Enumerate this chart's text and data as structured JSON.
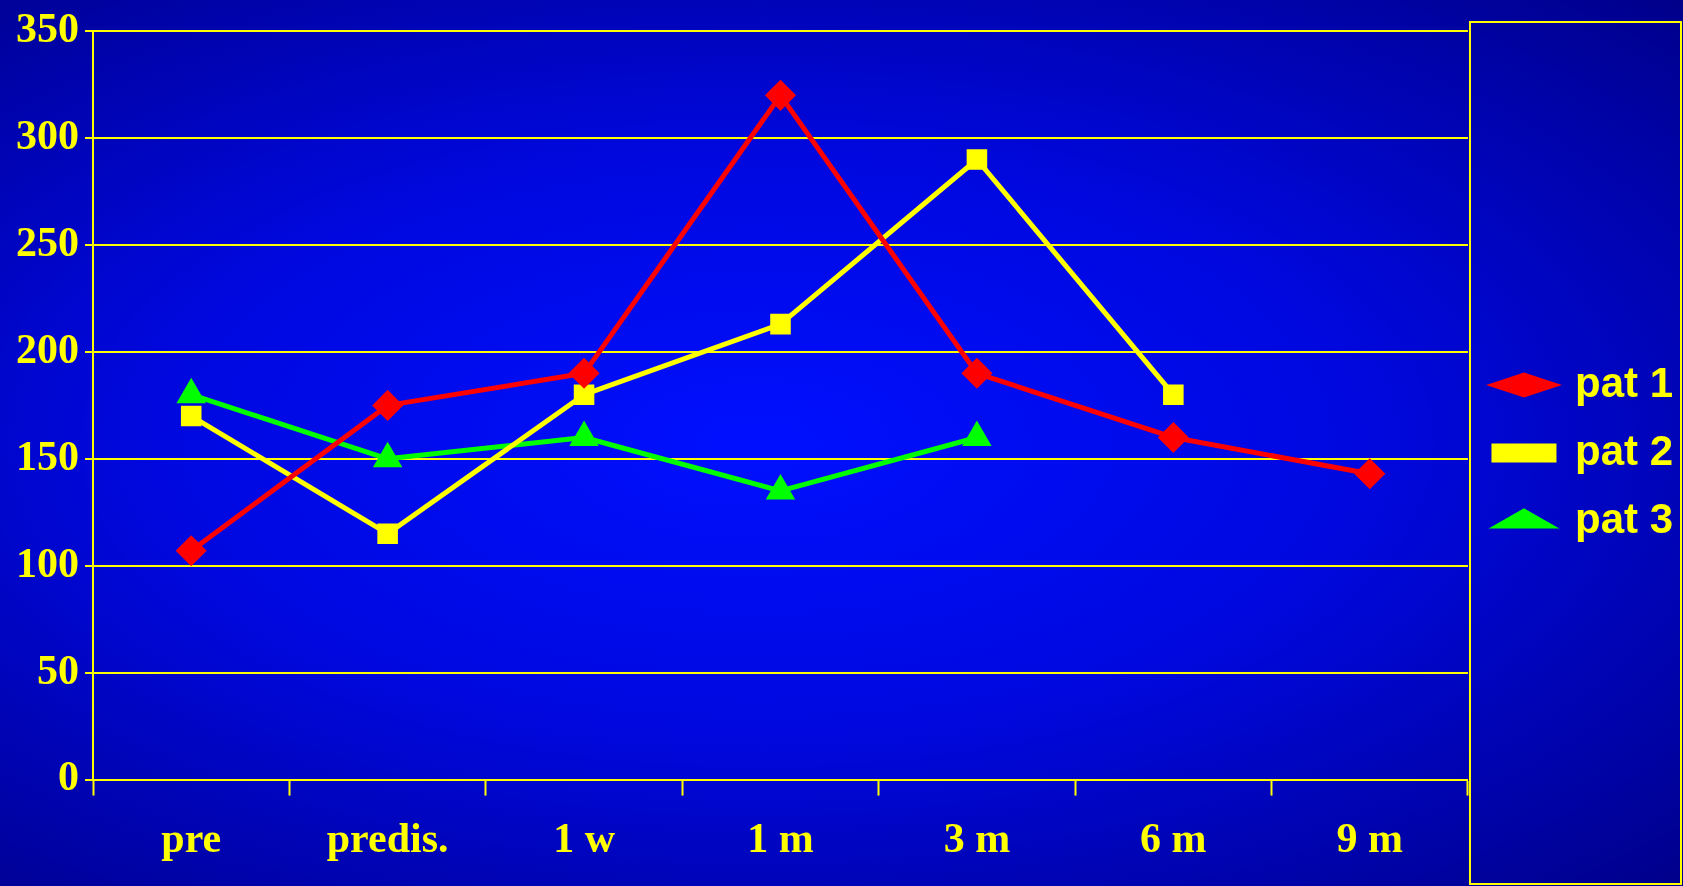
{
  "chart_data": {
    "type": "line",
    "categories": [
      "pre",
      "predis.",
      "1 w",
      "1 m",
      "3 m",
      "6 m",
      "9 m"
    ],
    "series": [
      {
        "name": "pat 1",
        "color": "#ff0000",
        "marker": "diamond",
        "values": [
          107,
          175,
          190,
          320,
          190,
          160,
          143
        ]
      },
      {
        "name": "pat 2",
        "color": "#ffff00",
        "marker": "square",
        "values": [
          170,
          115,
          180,
          213,
          290,
          180,
          null
        ]
      },
      {
        "name": "pat 3",
        "color": "#00ff00",
        "marker": "triangle",
        "values": [
          180,
          150,
          160,
          135,
          160,
          null,
          null
        ]
      }
    ],
    "ylim": [
      0,
      350
    ],
    "yticks": [
      0,
      50,
      100,
      150,
      200,
      250,
      300,
      350
    ],
    "grid": "y",
    "legend": "right",
    "line_style": "solid"
  }
}
